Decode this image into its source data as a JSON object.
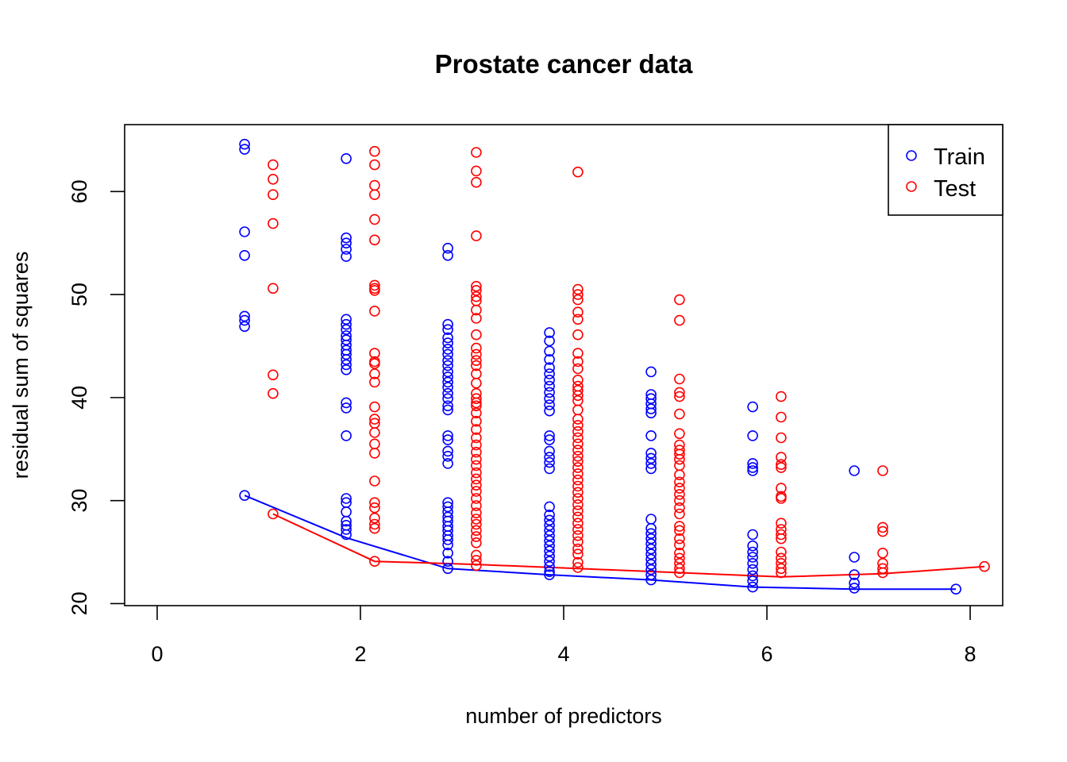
{
  "chart_data": {
    "type": "scatter",
    "title": "Prostate cancer data",
    "xlabel": "number of predictors",
    "ylabel": "residual sum of squares",
    "xlim": [
      -0.32,
      8.32
    ],
    "ylim": [
      19.8,
      66.5
    ],
    "x_ticks": [
      0,
      2,
      4,
      6,
      8
    ],
    "y_ticks": [
      20,
      30,
      40,
      50,
      60
    ],
    "grid": false,
    "legend": {
      "position": "top-right",
      "entries": [
        {
          "label": "Train",
          "color": "#0000ff"
        },
        {
          "label": "Test",
          "color": "#ff0000"
        }
      ]
    },
    "series": [
      {
        "name": "Train",
        "color": "#0000ff",
        "points_by_predictors": [
          {
            "x": 0.86,
            "y": [
              64.6,
              64.1,
              56.1,
              53.8,
              47.9,
              47.5,
              46.9,
              30.5
            ]
          },
          {
            "x": 1.86,
            "y": [
              63.2,
              55.5,
              55.0,
              54.4,
              53.7,
              47.6,
              47.1,
              46.6,
              46.0,
              45.6,
              45.1,
              44.6,
              44.2,
              43.7,
              43.2,
              42.7,
              39.5,
              39.0,
              36.3,
              30.2,
              29.8,
              28.9,
              28.0,
              27.6,
              27.2,
              26.7
            ]
          },
          {
            "x": 2.86,
            "y": [
              54.5,
              53.8,
              47.1,
              46.6,
              45.8,
              45.3,
              44.7,
              44.2,
              43.6,
              43.1,
              42.5,
              42.0,
              41.5,
              41.0,
              40.4,
              39.9,
              39.2,
              38.8,
              36.3,
              35.9,
              34.8,
              34.3,
              33.6,
              29.8,
              29.4,
              28.9,
              28.4,
              28.0,
              27.5,
              27.1,
              26.6,
              26.2,
              25.7,
              24.9,
              24.1,
              23.4
            ]
          },
          {
            "x": 3.86,
            "y": [
              46.3,
              45.5,
              44.5,
              43.7,
              42.9,
              42.3,
              41.7,
              41.1,
              40.5,
              39.9,
              39.3,
              38.7,
              36.3,
              35.9,
              34.8,
              34.2,
              33.7,
              33.1,
              29.4,
              28.6,
              28.1,
              27.6,
              27.1,
              26.6,
              26.1,
              25.6,
              25.1,
              24.6,
              24.1,
              23.6,
              23.1,
              22.8
            ]
          },
          {
            "x": 4.86,
            "y": [
              42.5,
              40.3,
              39.9,
              39.4,
              38.9,
              38.5,
              36.3,
              34.6,
              34.1,
              33.6,
              33.1,
              28.2,
              27.3,
              26.8,
              26.3,
              25.8,
              25.3,
              24.8,
              24.3,
              23.8,
              23.3,
              22.8,
              22.3
            ]
          },
          {
            "x": 5.86,
            "y": [
              39.1,
              36.3,
              33.6,
              33.2,
              32.9,
              26.7,
              25.6,
              25.0,
              24.5,
              23.9,
              23.3,
              22.7,
              22.2,
              21.6
            ]
          },
          {
            "x": 6.86,
            "y": [
              32.9,
              24.5,
              22.8,
              22.0,
              21.5
            ]
          },
          {
            "x": 7.86,
            "y": [
              21.4
            ]
          }
        ],
        "line": {
          "x": [
            0.86,
            1.86,
            2.86,
            3.86,
            4.86,
            5.86,
            6.86,
            7.86
          ],
          "y": [
            30.5,
            26.4,
            23.4,
            22.8,
            22.3,
            21.6,
            21.4,
            21.4
          ]
        }
      },
      {
        "name": "Test",
        "color": "#ff0000",
        "points_by_predictors": [
          {
            "x": 1.14,
            "y": [
              62.6,
              61.2,
              59.7,
              56.9,
              50.6,
              42.2,
              40.4,
              28.7
            ]
          },
          {
            "x": 2.14,
            "y": [
              63.9,
              62.6,
              60.6,
              59.7,
              57.3,
              55.3,
              50.9,
              50.6,
              50.4,
              48.4,
              44.3,
              43.5,
              43.3,
              42.3,
              41.5,
              39.1,
              37.9,
              37.5,
              36.6,
              35.5,
              34.6,
              31.9,
              29.8,
              29.3,
              28.3,
              27.7,
              27.3,
              24.1
            ]
          },
          {
            "x": 3.14,
            "y": [
              63.8,
              62.0,
              60.9,
              55.7,
              50.8,
              50.4,
              49.8,
              49.4,
              48.5,
              47.7,
              46.1,
              44.8,
              44.2,
              43.6,
              43.1,
              42.3,
              41.4,
              40.4,
              39.9,
              39.5,
              39.2,
              38.5,
              37.7,
              36.9,
              36.1,
              35.4,
              34.7,
              34.0,
              33.4,
              32.7,
              32.1,
              31.5,
              30.9,
              30.2,
              29.5,
              28.8,
              28.2,
              27.7,
              27.1,
              26.5,
              25.9,
              24.7,
              24.2,
              23.7
            ]
          },
          {
            "x": 4.14,
            "y": [
              61.9,
              50.5,
              50.0,
              49.5,
              48.3,
              47.6,
              46.1,
              44.3,
              43.5,
              42.8,
              41.7,
              41.1,
              40.7,
              40.2,
              39.7,
              38.8,
              37.9,
              37.3,
              36.7,
              36.1,
              35.5,
              34.9,
              34.3,
              33.8,
              33.2,
              32.6,
              32.0,
              31.4,
              30.8,
              30.2,
              29.6,
              29.0,
              28.4,
              27.8,
              27.2,
              26.6,
              26.0,
              25.3,
              24.8,
              24.0,
              23.5
            ]
          },
          {
            "x": 5.14,
            "y": [
              49.5,
              47.5,
              41.8,
              40.5,
              40.1,
              38.4,
              36.5,
              35.4,
              34.9,
              34.5,
              34.0,
              33.4,
              32.5,
              31.8,
              31.2,
              30.6,
              30.0,
              29.3,
              28.7,
              27.5,
              27.1,
              26.3,
              25.7,
              24.9,
              24.4,
              23.9,
              23.4,
              23.0
            ]
          },
          {
            "x": 6.14,
            "y": [
              40.1,
              38.1,
              36.1,
              34.2,
              33.5,
              33.2,
              31.2,
              30.4,
              30.2,
              27.8,
              27.2,
              26.7,
              26.3,
              25.0,
              24.4,
              23.9,
              23.4,
              23.0
            ]
          },
          {
            "x": 7.14,
            "y": [
              32.9,
              27.4,
              27.0,
              24.9,
              23.9,
              23.4,
              23.0
            ]
          },
          {
            "x": 8.14,
            "y": [
              23.6
            ]
          }
        ],
        "line": {
          "x": [
            1.14,
            2.14,
            3.14,
            4.14,
            5.14,
            6.14,
            7.14,
            8.14
          ],
          "y": [
            28.7,
            24.1,
            23.8,
            23.4,
            23.0,
            22.6,
            22.9,
            23.6
          ]
        }
      }
    ]
  }
}
